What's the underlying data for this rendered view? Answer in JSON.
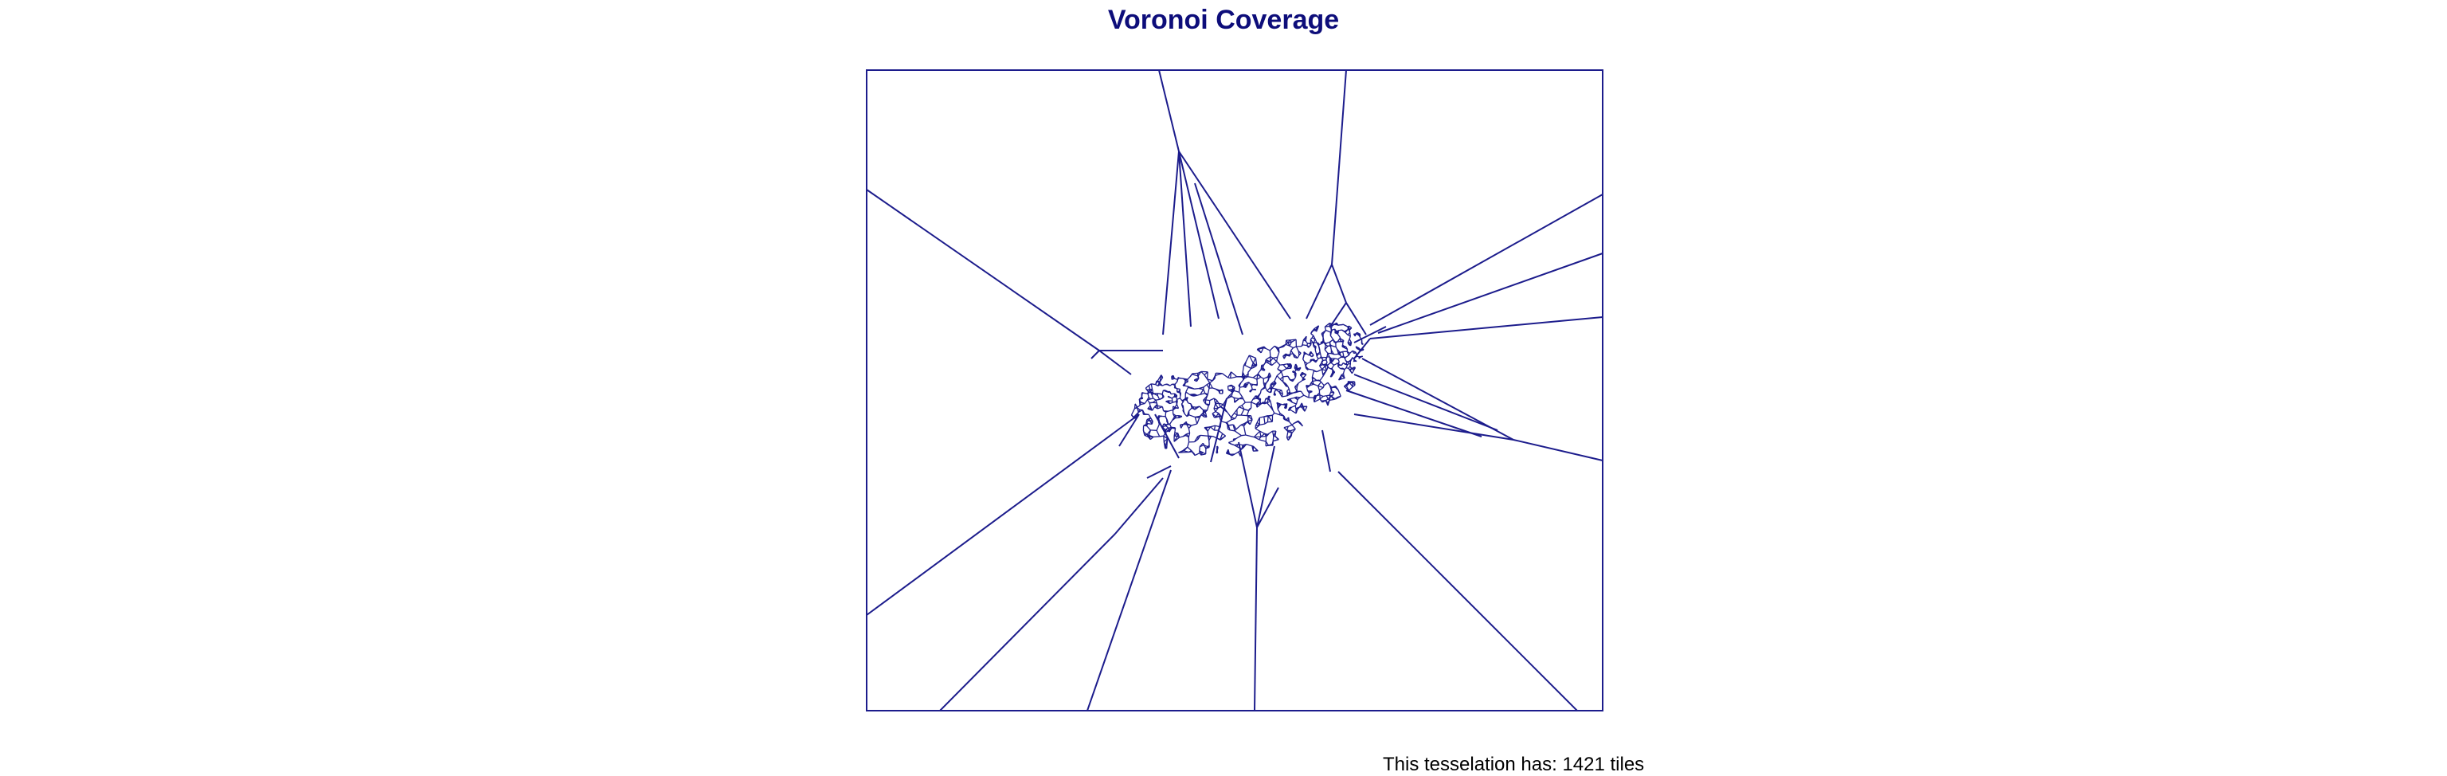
{
  "title": "Voronoi Coverage",
  "caption": "This tesselation has: 1421 tiles",
  "tile_count": 1421,
  "colors": {
    "title": "#0d0d7a",
    "lines": "#1c1c8c",
    "frame": "#1c1c8c",
    "caption": "#000000",
    "background": "#ffffff"
  }
}
